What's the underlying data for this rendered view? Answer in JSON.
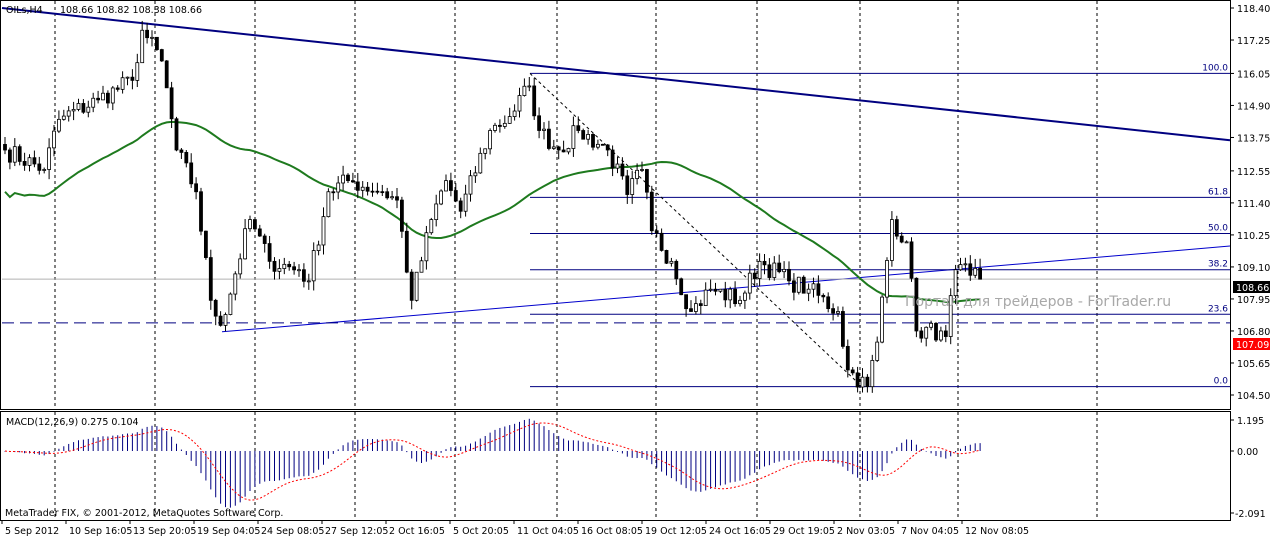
{
  "header": {
    "symbol": "OILs,H4",
    "ohlc": "108.66 108.82 108.38 108.66"
  },
  "indicator": {
    "label": "MACD(12,26,9) 0.275 0.104"
  },
  "copyright": "MetaTrader FIX, © 2001-2012, MetaQuotes Software Corp.",
  "watermark": "Портал для трейдеров - ForTrader.ru",
  "colors": {
    "background": "#ffffff",
    "trendline": "#000080",
    "ma": "#1e7a1e",
    "signal": "#ff0000",
    "histogram": "#000080",
    "ask_label": "#ff0000",
    "bid_label": "#000000"
  },
  "chart_data": {
    "type": "candlestick",
    "price_axis": {
      "ticks": [
        "118.40",
        "117.25",
        "116.05",
        "114.90",
        "113.75",
        "112.55",
        "111.40",
        "110.25",
        "109.10",
        "107.95",
        "106.80",
        "105.65",
        "104.50"
      ],
      "range": [
        104.5,
        118.4
      ]
    },
    "time_axis": {
      "ticks": [
        "5 Sep 2012",
        "10 Sep 16:05",
        "13 Sep 20:05",
        "19 Sep 04:05",
        "24 Sep 08:05",
        "27 Sep 12:05",
        "2 Oct 16:05",
        "5 Oct 20:05",
        "11 Oct 04:05",
        "16 Oct 08:05",
        "19 Oct 12:05",
        "24 Oct 16:05",
        "29 Oct 19:05",
        "2 Nov 03:05",
        "7 Nov 04:05",
        "12 Nov 08:05"
      ]
    },
    "bars": 200,
    "close_keypoints": [
      [
        0,
        113.3
      ],
      [
        8,
        112.6
      ],
      [
        11,
        114.4
      ],
      [
        19,
        115.1
      ],
      [
        26,
        115.8
      ],
      [
        28,
        117.6
      ],
      [
        32,
        116.5
      ],
      [
        35,
        113.3
      ],
      [
        39,
        111.8
      ],
      [
        42,
        107.9
      ],
      [
        44,
        107.0
      ],
      [
        50,
        110.8
      ],
      [
        54,
        109.3
      ],
      [
        60,
        109.0
      ],
      [
        62,
        108.6
      ],
      [
        66,
        111.8
      ],
      [
        70,
        112.2
      ],
      [
        77,
        111.8
      ],
      [
        80,
        111.5
      ],
      [
        83,
        107.9
      ],
      [
        87,
        110.8
      ],
      [
        90,
        112.2
      ],
      [
        93,
        111.1
      ],
      [
        99,
        114.0
      ],
      [
        103,
        114.5
      ],
      [
        107,
        115.6
      ],
      [
        109,
        114.0
      ],
      [
        113,
        113.3
      ],
      [
        117,
        114.0
      ],
      [
        123,
        113.3
      ],
      [
        127,
        111.7
      ],
      [
        130,
        112.6
      ],
      [
        132,
        110.4
      ],
      [
        136,
        109.3
      ],
      [
        140,
        107.5
      ],
      [
        144,
        108.3
      ],
      [
        150,
        107.9
      ],
      [
        154,
        109.3
      ],
      [
        160,
        108.6
      ],
      [
        164,
        108.3
      ],
      [
        170,
        107.5
      ],
      [
        172,
        105.4
      ],
      [
        176,
        104.8
      ],
      [
        178,
        106.4
      ],
      [
        181,
        110.8
      ],
      [
        184,
        110.0
      ],
      [
        186,
        106.8
      ],
      [
        191,
        106.8
      ],
      [
        192,
        106.6
      ],
      [
        194,
        109.0
      ],
      [
        197,
        108.8
      ],
      [
        199,
        108.66
      ]
    ],
    "current_bid": "108.66",
    "ask_line": "107.09",
    "fibonacci": {
      "levels": [
        {
          "label": "100.0",
          "price": 116.05
        },
        {
          "label": "61.8",
          "price": 111.6
        },
        {
          "label": "50.0",
          "price": 110.3
        },
        {
          "label": "38.2",
          "price": 109.0
        },
        {
          "label": "23.6",
          "price": 107.4
        },
        {
          "label": "0.0",
          "price": 104.8
        }
      ]
    },
    "macd": {
      "params": [
        12,
        26,
        9
      ],
      "value": 0.275,
      "signal": 0.104,
      "axis_ticks": [
        "1.195",
        "0.00",
        "-2.091"
      ]
    }
  }
}
